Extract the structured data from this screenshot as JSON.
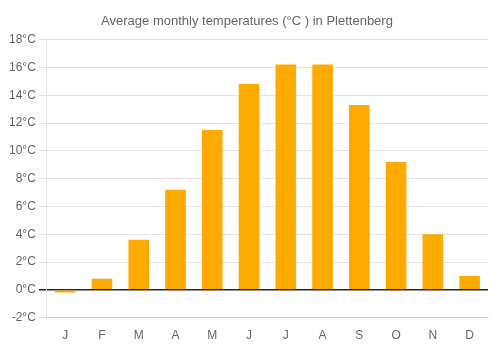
{
  "chart_data": {
    "type": "bar",
    "title": "Average monthly temperatures (°C ) in Plettenberg",
    "categories": [
      "J",
      "F",
      "M",
      "A",
      "M",
      "J",
      "J",
      "A",
      "S",
      "O",
      "N",
      "D"
    ],
    "values": [
      -0.2,
      0.8,
      3.6,
      7.2,
      11.5,
      14.8,
      16.2,
      16.2,
      13.3,
      9.2,
      4.0,
      1.0
    ],
    "color": "#FFAA00",
    "ylim": [
      -2,
      18
    ],
    "yticks": [
      {
        "value": -2,
        "label": "-2°C"
      },
      {
        "value": 0,
        "label": "0°C"
      },
      {
        "value": 2,
        "label": "2°C"
      },
      {
        "value": 4,
        "label": "4°C"
      },
      {
        "value": 6,
        "label": "6°C"
      },
      {
        "value": 8,
        "label": "8°C"
      },
      {
        "value": 10,
        "label": "10°C"
      },
      {
        "value": 12,
        "label": "12°C"
      },
      {
        "value": 14,
        "label": "14°C"
      },
      {
        "value": 16,
        "label": "16°C"
      },
      {
        "value": 18,
        "label": "18°C"
      }
    ],
    "grid": true
  }
}
